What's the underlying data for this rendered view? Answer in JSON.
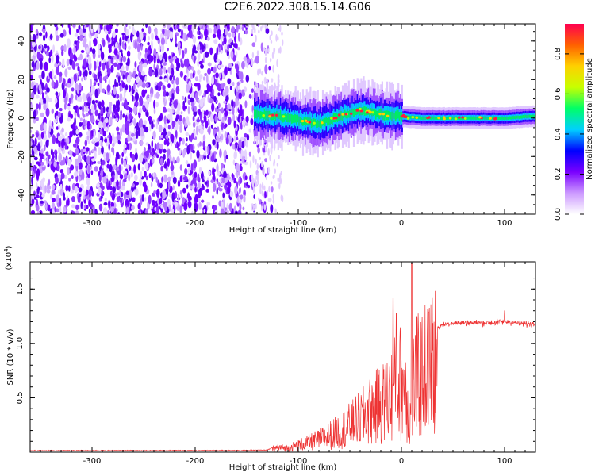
{
  "page_title": "C2E6.2022.308.15.14.G06",
  "chart_data": [
    {
      "type": "heatmap",
      "xlabel": "Height of straight line (km)",
      "ylabel": "Frequency (Hz)",
      "xlim": [
        -360,
        130
      ],
      "ylim": [
        -50,
        49
      ],
      "xticks": [
        -300,
        -200,
        -100,
        0,
        100
      ],
      "yticks": [
        -40,
        -20,
        0,
        20,
        40
      ],
      "colorbar": {
        "label": "Normalized spectral amplitude",
        "range": [
          0,
          0.95
        ],
        "ticks": [
          0.0,
          0.2,
          0.4,
          0.6,
          0.8
        ],
        "tick_labels": [
          "0.0",
          "0.2",
          "0.4",
          "0.6",
          "0.8"
        ],
        "colors": [
          "#ffffff",
          "#cc99ff",
          "#7a00ff",
          "#0000ff",
          "#00d0ff",
          "#00ff66",
          "#c8ff00",
          "#ffd000",
          "#ff6000",
          "#ff0050"
        ]
      },
      "noise_region": {
        "x_from": -360,
        "x_to": -125,
        "description_levels": "low amplitude (~0.1–0.3)"
      },
      "signal_ridge": [
        {
          "x": -143,
          "freq": 2
        },
        {
          "x": -120,
          "freq": 1
        },
        {
          "x": -100,
          "freq": -1
        },
        {
          "x": -80,
          "freq": -3
        },
        {
          "x": -60,
          "freq": 1
        },
        {
          "x": -40,
          "freq": 4
        },
        {
          "x": -20,
          "freq": 2
        },
        {
          "x": -5,
          "freq": 1
        },
        {
          "x": 20,
          "freq": 0
        },
        {
          "x": 60,
          "freq": 0
        },
        {
          "x": 100,
          "freq": 0
        },
        {
          "x": 130,
          "freq": 1
        }
      ]
    },
    {
      "type": "line",
      "xlabel": "Height of straight line (km)",
      "ylabel": "SNR (10 * v/v)",
      "y_multiplier": "(x10^4)",
      "xlim": [
        -360,
        130
      ],
      "ylim": [
        0,
        1.75
      ],
      "xticks": [
        -300,
        -200,
        -100,
        0,
        100
      ],
      "yticks": [
        0.5,
        1.0,
        1.5
      ],
      "ytick_labels": [
        "0.5",
        "1.0",
        "1.5"
      ],
      "color": "#ee3333",
      "series": [
        {
          "x": [
            -360,
            -300,
            -250,
            -200,
            -150,
            -130,
            -120,
            -110,
            -100,
            -90,
            -80,
            -70,
            -60,
            -50,
            -40,
            -30,
            -20,
            -10,
            -5,
            0,
            5,
            8,
            10,
            12,
            15,
            20,
            25,
            30,
            40,
            50,
            60,
            70,
            80,
            90,
            100,
            110,
            120,
            130
          ],
          "y": [
            0.015,
            0.015,
            0.016,
            0.016,
            0.017,
            0.02,
            0.06,
            0.05,
            0.09,
            0.12,
            0.16,
            0.21,
            0.27,
            0.34,
            0.42,
            0.52,
            0.6,
            0.72,
            0.84,
            0.9,
            0.78,
            0.32,
            0.68,
            0.88,
            0.94,
            0.98,
            1.05,
            1.12,
            1.17,
            1.19,
            1.19,
            1.19,
            1.19,
            1.19,
            1.2,
            1.19,
            1.18,
            1.18
          ]
        }
      ],
      "spikes": [
        {
          "x": -8,
          "y": 1.42
        },
        {
          "x": -5,
          "y": 1.28
        },
        {
          "x": 10,
          "y": 1.74
        },
        {
          "x": 100,
          "y": 1.3
        }
      ]
    }
  ]
}
